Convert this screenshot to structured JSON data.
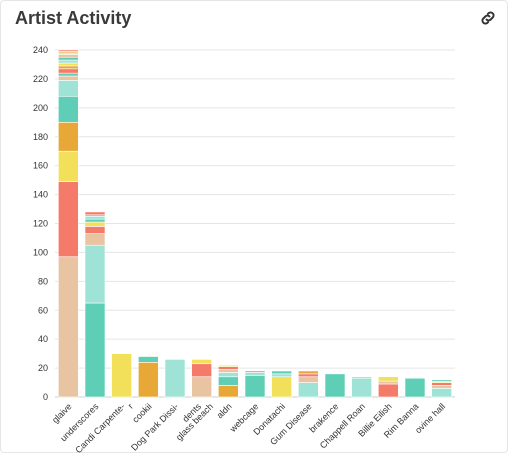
{
  "page": {
    "title": "Artist Activity",
    "link_icon": "link-icon"
  },
  "chart_data": {
    "type": "bar",
    "stacked": true,
    "title": "Artist Activity",
    "xlabel": "",
    "ylabel": "",
    "ylim": [
      0,
      240
    ],
    "yticks": [
      0,
      20,
      40,
      60,
      80,
      100,
      120,
      140,
      160,
      180,
      200,
      220,
      240
    ],
    "grid": true,
    "categories": [
      "glaive",
      "underscores",
      "Candi Carpente-",
      "r",
      "cookii",
      "Dog Park Dissi-",
      "dents",
      "glass beach",
      "aldn",
      "webcage",
      "Donatachi",
      "Gum Disease",
      "brakence",
      "Chappell Roan",
      "Billie Eilish",
      "Rim Banna",
      "ovine hall"
    ],
    "bars": [
      {
        "label": "glaive",
        "segments": [
          {
            "value": 97,
            "color": "#e8c4a2"
          },
          {
            "value": 52,
            "color": "#f47a6a"
          },
          {
            "value": 21,
            "color": "#f2e05a"
          },
          {
            "value": 20,
            "color": "#e8a838"
          },
          {
            "value": 18,
            "color": "#5ecfb6"
          },
          {
            "value": 11,
            "color": "#9ee3d6"
          },
          {
            "value": 3,
            "color": "#e8c4a2"
          },
          {
            "value": 2,
            "color": "#5ecfb6"
          },
          {
            "value": 3,
            "color": "#f47a6a"
          },
          {
            "value": 2,
            "color": "#e8a838"
          },
          {
            "value": 2,
            "color": "#f2e05a"
          },
          {
            "value": 2,
            "color": "#9ee3d6"
          },
          {
            "value": 2,
            "color": "#5ecfb6"
          },
          {
            "value": 2,
            "color": "#e8c4a2"
          },
          {
            "value": 1,
            "color": "#f2e05a"
          },
          {
            "value": 1,
            "color": "#e8a838"
          },
          {
            "value": 1,
            "color": "#f47a6a"
          }
        ]
      },
      {
        "label": "underscores",
        "segments": [
          {
            "value": 65,
            "color": "#5ecfb6"
          },
          {
            "value": 40,
            "color": "#9ee3d6"
          },
          {
            "value": 8,
            "color": "#e8c4a2"
          },
          {
            "value": 5,
            "color": "#f47a6a"
          },
          {
            "value": 3,
            "color": "#f2e05a"
          },
          {
            "value": 2,
            "color": "#5ecfb6"
          },
          {
            "value": 2,
            "color": "#9ee3d6"
          },
          {
            "value": 1,
            "color": "#e8a838"
          },
          {
            "value": 2,
            "color": "#f47a6a"
          }
        ]
      },
      {
        "label": "Candi Carpente-r",
        "segments": [
          {
            "value": 30,
            "color": "#f2e05a"
          }
        ]
      },
      {
        "label": "cookii",
        "segments": [
          {
            "value": 24,
            "color": "#e8a838"
          },
          {
            "value": 4,
            "color": "#5ecfb6"
          }
        ]
      },
      {
        "label": "Dog Park Dissi-dents",
        "segments": [
          {
            "value": 26,
            "color": "#9ee3d6"
          }
        ]
      },
      {
        "label": "glass beach",
        "segments": [
          {
            "value": 14,
            "color": "#e8c4a2"
          },
          {
            "value": 9,
            "color": "#f47a6a"
          },
          {
            "value": 3,
            "color": "#f2e05a"
          }
        ]
      },
      {
        "label": "aldn",
        "segments": [
          {
            "value": 8,
            "color": "#e8a838"
          },
          {
            "value": 6,
            "color": "#5ecfb6"
          },
          {
            "value": 3,
            "color": "#9ee3d6"
          },
          {
            "value": 2,
            "color": "#e8c4a2"
          },
          {
            "value": 2,
            "color": "#f47a6a"
          },
          {
            "value": 1,
            "color": "#f2e05a"
          }
        ]
      },
      {
        "label": "webcage",
        "segments": [
          {
            "value": 15,
            "color": "#5ecfb6"
          },
          {
            "value": 2,
            "color": "#9ee3d6"
          },
          {
            "value": 1,
            "color": "#f47a6a"
          }
        ]
      },
      {
        "label": "Donatachi",
        "segments": [
          {
            "value": 14,
            "color": "#f2e05a"
          },
          {
            "value": 2,
            "color": "#9ee3d6"
          },
          {
            "value": 2,
            "color": "#5ecfb6"
          }
        ]
      },
      {
        "label": "Gum Disease",
        "segments": [
          {
            "value": 10,
            "color": "#9ee3d6"
          },
          {
            "value": 4,
            "color": "#e8c4a2"
          },
          {
            "value": 2,
            "color": "#f47a6a"
          },
          {
            "value": 2,
            "color": "#e8a838"
          }
        ]
      },
      {
        "label": "brakence",
        "segments": [
          {
            "value": 16,
            "color": "#5ecfb6"
          }
        ]
      },
      {
        "label": "Chappell Roan",
        "segments": [
          {
            "value": 13,
            "color": "#9ee3d6"
          },
          {
            "value": 1,
            "color": "#e8c4a2"
          }
        ]
      },
      {
        "label": "Billie Eilish",
        "segments": [
          {
            "value": 9,
            "color": "#f47a6a"
          },
          {
            "value": 2,
            "color": "#e8c4a2"
          },
          {
            "value": 3,
            "color": "#f2e05a"
          }
        ]
      },
      {
        "label": "Rim Banna",
        "segments": [
          {
            "value": 13,
            "color": "#5ecfb6"
          }
        ]
      },
      {
        "label": "ovine hall",
        "segments": [
          {
            "value": 6,
            "color": "#9ee3d6"
          },
          {
            "value": 2,
            "color": "#e8c4a2"
          },
          {
            "value": 2,
            "color": "#f47a6a"
          },
          {
            "value": 1,
            "color": "#f2e05a"
          },
          {
            "value": 1,
            "color": "#5ecfb6"
          }
        ]
      }
    ],
    "xtick_labels": [
      "glaive",
      "underscores",
      "Candi Carpente-",
      "r",
      "cookii",
      "Dog Park Dissi-",
      "dents",
      "glass beach",
      "aldn",
      "webcage",
      "Donatachi",
      "Gum Disease",
      "brakence",
      "Chappell Roan",
      "Billie Eilish",
      "Rim Banna",
      "ovine hall"
    ],
    "colors": {
      "peach": "#e8c4a2",
      "coral": "#f47a6a",
      "yellow": "#f2e05a",
      "orange": "#e8a838",
      "teal": "#5ecfb6",
      "mint": "#9ee3d6",
      "grid": "#e5e5e5",
      "axis": "#cccccc"
    }
  }
}
